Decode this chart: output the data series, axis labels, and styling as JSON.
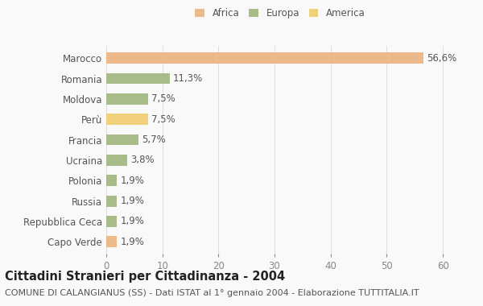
{
  "categories": [
    "Marocco",
    "Romania",
    "Moldova",
    "Perù",
    "Francia",
    "Ucraina",
    "Polonia",
    "Russia",
    "Repubblica Ceca",
    "Capo Verde"
  ],
  "values": [
    56.6,
    11.3,
    7.5,
    7.5,
    5.7,
    3.8,
    1.9,
    1.9,
    1.9,
    1.9
  ],
  "colors": [
    "#ecb98a",
    "#a8bc8a",
    "#a8bc8a",
    "#f0d07a",
    "#a8bc8a",
    "#a8bc8a",
    "#a8bc8a",
    "#a8bc8a",
    "#a8bc8a",
    "#ecb98a"
  ],
  "labels": [
    "56,6%",
    "11,3%",
    "7,5%",
    "7,5%",
    "5,7%",
    "3,8%",
    "1,9%",
    "1,9%",
    "1,9%",
    "1,9%"
  ],
  "legend": [
    {
      "label": "Africa",
      "color": "#ecb98a"
    },
    {
      "label": "Europa",
      "color": "#a8bc8a"
    },
    {
      "label": "America",
      "color": "#f0d07a"
    }
  ],
  "title": "Cittadini Stranieri per Cittadinanza - 2004",
  "subtitle": "COMUNE DI CALANGIANUS (SS) - Dati ISTAT al 1° gennaio 2004 - Elaborazione TUTTITALIA.IT",
  "xlim": [
    0,
    62
  ],
  "xticks": [
    0,
    10,
    20,
    30,
    40,
    50,
    60
  ],
  "background_color": "#f9f9f9",
  "bar_height": 0.55,
  "title_fontsize": 10.5,
  "subtitle_fontsize": 8,
  "label_fontsize": 8.5,
  "tick_fontsize": 8.5
}
